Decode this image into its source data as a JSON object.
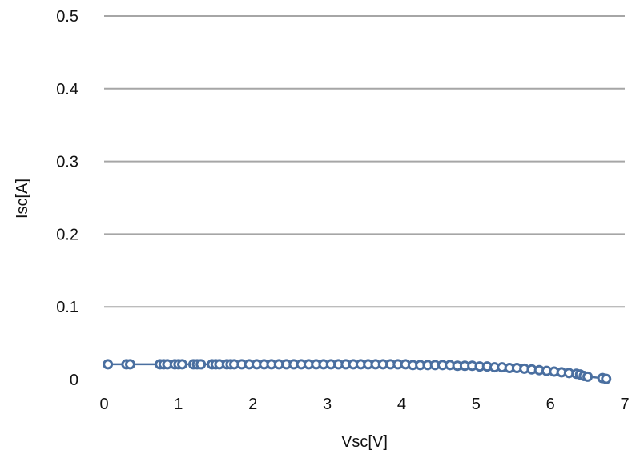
{
  "chart_data": {
    "type": "scatter",
    "xlabel": "Vsc[V]",
    "ylabel": "Isc[A]",
    "xlim": [
      0,
      7
    ],
    "ylim": [
      0,
      0.5
    ],
    "x_ticks": [
      "0",
      "1",
      "2",
      "3",
      "4",
      "5",
      "6",
      "7"
    ],
    "y_ticks": [
      "0",
      "0.1",
      "0.2",
      "0.3",
      "0.4",
      "0.5"
    ],
    "grid": "horizontal",
    "legend": "none",
    "color": "#4a6fa0",
    "gridline_color": "#a6a6a6",
    "series": [
      {
        "x": [
          0.05,
          0.3,
          0.35,
          0.75,
          0.8,
          0.85,
          0.95,
          1.0,
          1.05,
          1.2,
          1.25,
          1.3,
          1.45,
          1.5,
          1.55,
          1.65,
          1.7,
          1.75,
          1.85,
          1.95,
          2.05,
          2.15,
          2.25,
          2.35,
          2.45,
          2.55,
          2.65,
          2.75,
          2.85,
          2.95,
          3.05,
          3.15,
          3.25,
          3.35,
          3.45,
          3.55,
          3.65,
          3.75,
          3.85,
          3.95,
          4.05,
          4.15,
          4.25,
          4.35,
          4.45,
          4.55,
          4.65,
          4.75,
          4.85,
          4.95,
          5.05,
          5.15,
          5.25,
          5.35,
          5.45,
          5.55,
          5.65,
          5.75,
          5.85,
          5.95,
          6.05,
          6.15,
          6.25,
          6.35,
          6.4,
          6.45,
          6.5,
          6.7,
          6.75
        ],
        "y": [
          0.021,
          0.021,
          0.021,
          0.021,
          0.021,
          0.021,
          0.021,
          0.021,
          0.021,
          0.021,
          0.021,
          0.021,
          0.021,
          0.021,
          0.021,
          0.021,
          0.021,
          0.021,
          0.021,
          0.021,
          0.021,
          0.021,
          0.021,
          0.021,
          0.021,
          0.021,
          0.021,
          0.021,
          0.021,
          0.021,
          0.021,
          0.021,
          0.021,
          0.021,
          0.021,
          0.021,
          0.021,
          0.021,
          0.021,
          0.021,
          0.021,
          0.02,
          0.02,
          0.02,
          0.02,
          0.02,
          0.02,
          0.019,
          0.019,
          0.019,
          0.018,
          0.018,
          0.017,
          0.017,
          0.016,
          0.016,
          0.015,
          0.014,
          0.013,
          0.012,
          0.011,
          0.01,
          0.009,
          0.008,
          0.007,
          0.005,
          0.004,
          0.002,
          0.001
        ]
      }
    ]
  }
}
